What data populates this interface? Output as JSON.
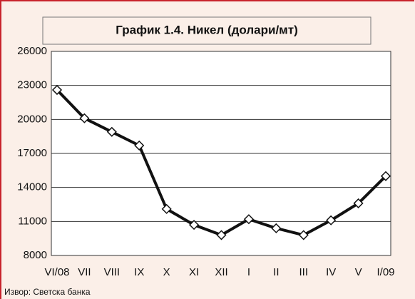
{
  "chart_data": {
    "type": "line",
    "title": "График 1.4. Никел (долари/мт)",
    "source": "Извор: Светска банка",
    "categories": [
      "VI/08",
      "VII",
      "VIII",
      "IX",
      "X",
      "XI",
      "XII",
      "I",
      "II",
      "III",
      "IV",
      "V",
      "I/09"
    ],
    "values": [
      22600,
      20100,
      18900,
      17700,
      12100,
      10700,
      9800,
      11200,
      10400,
      9800,
      11100,
      12600,
      15000
    ],
    "color": "#111111",
    "ylim": [
      8000,
      26000
    ],
    "yticks": [
      8000,
      11000,
      14000,
      17000,
      20000,
      23000,
      26000
    ],
    "grid": true
  }
}
